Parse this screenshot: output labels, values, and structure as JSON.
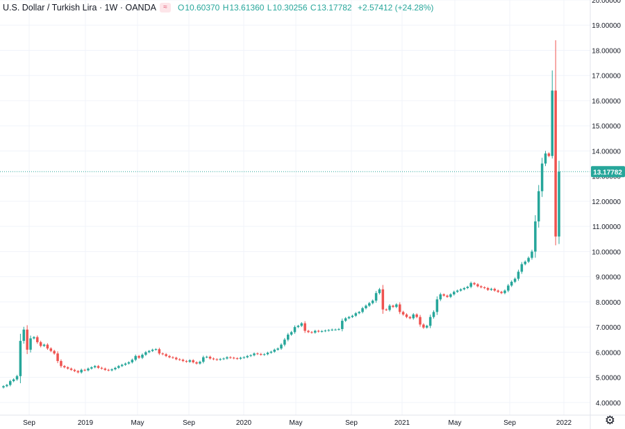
{
  "header": {
    "symbol": "U.S. Dollar / Turkish Lira",
    "interval": "1W",
    "source": "OANDA",
    "sep": "·",
    "compare_icon": "≈",
    "open_key": "O",
    "open": "10.60370",
    "high_key": "H",
    "high": "13.61360",
    "low_key": "L",
    "low": "10.30256",
    "close_key": "C",
    "close": "13.17782",
    "change": "+2.57412 (+24.28%)"
  },
  "colors": {
    "up": "#26a69a",
    "down": "#ef5350",
    "grid": "#f0f3fa",
    "text": "#131722",
    "price_line": "#26a69a"
  },
  "settings_icon": "gear-icon",
  "chart_data": {
    "type": "candlestick",
    "ylim": [
      3.5,
      20.0
    ],
    "y_ticks": [
      "4.00000",
      "5.00000",
      "6.00000",
      "7.00000",
      "8.00000",
      "9.00000",
      "10.00000",
      "11.00000",
      "12.00000",
      "13.00000",
      "14.00000",
      "15.00000",
      "16.00000",
      "17.00000",
      "18.00000",
      "19.00000",
      "20.00000"
    ],
    "x_ticks": [
      "Sep",
      "2019",
      "May",
      "Sep",
      "2020",
      "May",
      "Sep",
      "2021",
      "May",
      "Sep",
      "2022"
    ],
    "grid": true,
    "last_price_label": "13.17782",
    "last_price": 13.17782,
    "candles_close": [
      4.65,
      4.7,
      4.85,
      4.92,
      5.05,
      6.45,
      6.9,
      6.1,
      6.55,
      6.6,
      6.4,
      6.25,
      6.3,
      6.15,
      6.05,
      5.95,
      5.65,
      5.45,
      5.4,
      5.35,
      5.3,
      5.25,
      5.2,
      5.3,
      5.28,
      5.35,
      5.4,
      5.45,
      5.38,
      5.35,
      5.3,
      5.28,
      5.32,
      5.38,
      5.45,
      5.5,
      5.55,
      5.6,
      5.7,
      5.85,
      5.78,
      5.9,
      6.0,
      6.05,
      6.1,
      6.12,
      5.95,
      5.92,
      5.85,
      5.8,
      5.78,
      5.72,
      5.7,
      5.65,
      5.62,
      5.68,
      5.6,
      5.55,
      5.62,
      5.8,
      5.82,
      5.75,
      5.72,
      5.7,
      5.73,
      5.75,
      5.8,
      5.78,
      5.76,
      5.74,
      5.78,
      5.8,
      5.85,
      5.88,
      5.95,
      5.93,
      5.9,
      5.92,
      5.98,
      6.02,
      6.1,
      6.15,
      6.3,
      6.5,
      6.7,
      6.8,
      7.0,
      7.05,
      7.15,
      6.85,
      6.8,
      6.78,
      6.85,
      6.82,
      6.84,
      6.86,
      6.88,
      6.9,
      6.9,
      6.92,
      7.25,
      7.35,
      7.4,
      7.45,
      7.55,
      7.6,
      7.75,
      7.85,
      7.95,
      8.05,
      8.35,
      8.5,
      7.7,
      7.68,
      7.85,
      7.8,
      7.9,
      7.6,
      7.5,
      7.4,
      7.35,
      7.5,
      7.4,
      7.1,
      6.98,
      7.05,
      7.4,
      7.6,
      8.1,
      8.3,
      8.25,
      8.2,
      8.3,
      8.4,
      8.45,
      8.5,
      8.55,
      8.6,
      8.75,
      8.7,
      8.62,
      8.58,
      8.55,
      8.48,
      8.52,
      8.45,
      8.4,
      8.35,
      8.45,
      8.65,
      8.8,
      8.92,
      9.2,
      9.5,
      9.6,
      9.75,
      10.0,
      11.2,
      12.4,
      13.5,
      13.9,
      13.8,
      16.4,
      10.6,
      13.18
    ]
  }
}
